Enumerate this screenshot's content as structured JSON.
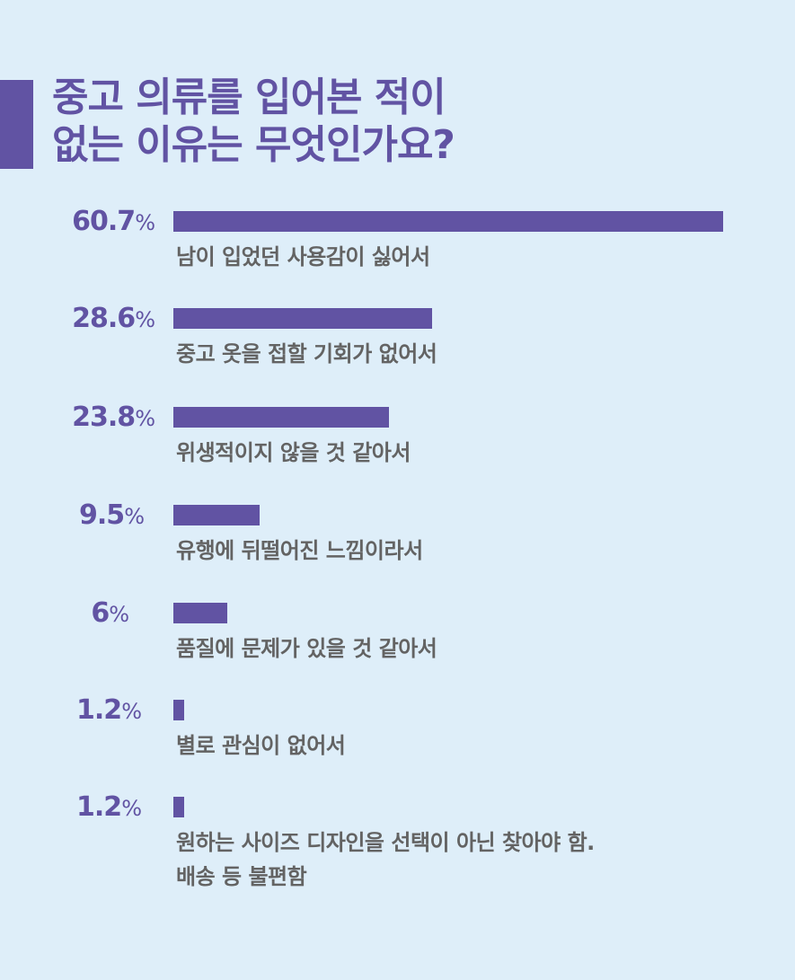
{
  "title": {
    "line1": "중고 의류를 입어본 적이",
    "line2": "없는 이유는 무엇인가요?"
  },
  "colors": {
    "background": "#deeef9",
    "accent": "#6153a3",
    "label_text": "#636363"
  },
  "rows": [
    {
      "value_label": "60.7",
      "label": "남이 입었던 사용감이 싫어서"
    },
    {
      "value_label": "28.6",
      "label": "중고 옷을 접할 기회가 없어서"
    },
    {
      "value_label": "23.8",
      "label": "위생적이지 않을 것 같아서"
    },
    {
      "value_label": "9.5",
      "label": "유행에 뒤떨어진 느낌이라서"
    },
    {
      "value_label": "6",
      "label": "품질에 문제가 있을 것 같아서"
    },
    {
      "value_label": "1.2",
      "label": "별로 관심이 없어서"
    },
    {
      "value_label": "1.2",
      "label": "원하는 사이즈 디자인을 선택이 아닌 찾아야 함.\n배송 등 불편함"
    }
  ],
  "percent_sign": "%",
  "chart_data": {
    "type": "bar",
    "orientation": "horizontal",
    "title": "중고 의류를 입어본 적이 없는 이유는 무엇인가요?",
    "categories": [
      "남이 입었던 사용감이 싫어서",
      "중고 옷을 접할 기회가 없어서",
      "위생적이지 않을 것 같아서",
      "유행에 뒤떨어진 느낌이라서",
      "품질에 문제가 있을 것 같아서",
      "별로 관심이 없어서",
      "원하는 사이즈 디자인을 선택이 아닌 찾아야 함. 배송 등 불편함"
    ],
    "values": [
      60.7,
      28.6,
      23.8,
      9.5,
      6,
      1.2,
      1.2
    ],
    "unit": "%",
    "xlabel": "",
    "ylabel": "",
    "grid": false,
    "legend": null,
    "data_labels": true
  }
}
